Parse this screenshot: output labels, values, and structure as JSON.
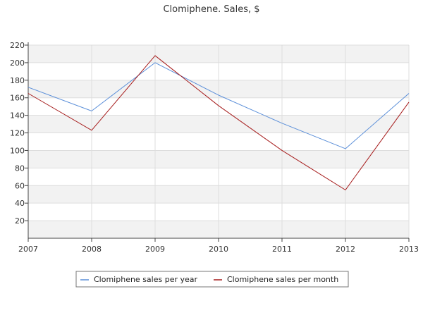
{
  "chart_data": {
    "type": "line",
    "title": "Clomiphene. Sales, $",
    "xlabel": "",
    "ylabel": "",
    "x": [
      "2007",
      "2008",
      "2009",
      "2010",
      "2011",
      "2012",
      "2013"
    ],
    "ylim": [
      0,
      220
    ],
    "yticks": [
      20,
      40,
      60,
      80,
      100,
      120,
      140,
      160,
      180,
      200,
      220
    ],
    "grid": true,
    "legend_position": "bottom",
    "series": [
      {
        "name": "Clomiphene sales per year",
        "color": "#5b8fd9",
        "values": [
          172,
          145,
          200,
          163,
          131,
          102,
          165
        ]
      },
      {
        "name": "Clomiphene sales per month",
        "color": "#a61c1c",
        "values": [
          165,
          123,
          208,
          151,
          100,
          55,
          155
        ]
      }
    ]
  }
}
